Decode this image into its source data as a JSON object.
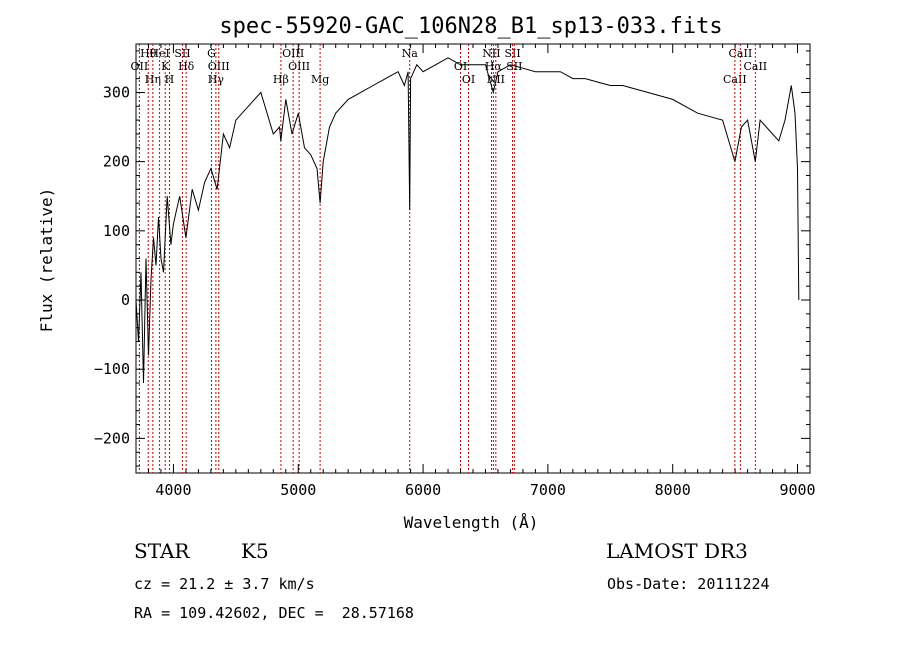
{
  "chart_data": {
    "type": "line",
    "title": "spec-55920-GAC_106N28_B1_sp13-033.fits",
    "xlabel": "Wavelength (Å)",
    "ylabel": "Flux (relative)",
    "xlim": [
      3700,
      9100
    ],
    "ylim": [
      -250,
      370
    ],
    "xticks": [
      4000,
      5000,
      6000,
      7000,
      8000,
      9000
    ],
    "yticks": [
      -200,
      -100,
      0,
      100,
      200,
      300
    ],
    "xtick_labels": [
      "4000",
      "5000",
      "6000",
      "7000",
      "8000",
      "9000"
    ],
    "ytick_labels": [
      "−200",
      "−100",
      "0",
      "100",
      "200",
      "300"
    ],
    "series": [
      {
        "name": "flux",
        "x": [
          3700,
          3720,
          3740,
          3760,
          3780,
          3800,
          3820,
          3840,
          3860,
          3880,
          3900,
          3920,
          3950,
          3980,
          4000,
          4050,
          4100,
          4150,
          4200,
          4250,
          4300,
          4350,
          4400,
          4450,
          4500,
          4600,
          4700,
          4800,
          4850,
          4860,
          4900,
          4950,
          5000,
          5050,
          5100,
          5150,
          5175,
          5200,
          5250,
          5300,
          5400,
          5500,
          5600,
          5700,
          5800,
          5850,
          5880,
          5893,
          5900,
          5950,
          6000,
          6100,
          6200,
          6300,
          6400,
          6500,
          6563,
          6600,
          6700,
          6800,
          6900,
          7000,
          7100,
          7200,
          7300,
          7400,
          7500,
          7600,
          7700,
          7800,
          7900,
          8000,
          8100,
          8200,
          8300,
          8400,
          8498,
          8550,
          8600,
          8662,
          8700,
          8750,
          8800,
          8850,
          8900,
          8950,
          8980,
          9000,
          9010
        ],
        "y": [
          0,
          -60,
          40,
          -120,
          60,
          -80,
          30,
          90,
          50,
          120,
          60,
          40,
          150,
          80,
          110,
          150,
          90,
          160,
          130,
          170,
          190,
          160,
          240,
          220,
          260,
          280,
          300,
          240,
          250,
          230,
          290,
          240,
          270,
          220,
          210,
          190,
          140,
          200,
          250,
          270,
          290,
          300,
          310,
          320,
          330,
          310,
          330,
          130,
          320,
          340,
          330,
          340,
          350,
          340,
          340,
          340,
          300,
          330,
          340,
          335,
          330,
          330,
          330,
          320,
          320,
          315,
          310,
          310,
          305,
          300,
          295,
          290,
          280,
          270,
          265,
          260,
          200,
          250,
          260,
          200,
          260,
          250,
          240,
          230,
          260,
          310,
          270,
          190,
          0
        ]
      }
    ],
    "lines": [
      {
        "name": "Hθ",
        "x": 3798
      },
      {
        "name": "OII",
        "x": 3727
      },
      {
        "name": "Hη",
        "x": 3835
      },
      {
        "name": "HeI",
        "x": 3889
      },
      {
        "name": "K",
        "x": 3934
      },
      {
        "name": "H",
        "x": 3968
      },
      {
        "name": "SII",
        "x": 4072
      },
      {
        "name": "Hδ",
        "x": 4102
      },
      {
        "name": "Hγ",
        "x": 4340
      },
      {
        "name": "G",
        "x": 4305
      },
      {
        "name": "OIII",
        "x": 4363
      },
      {
        "name": "Hβ",
        "x": 4861
      },
      {
        "name": "OIII",
        "x": 4959
      },
      {
        "name": "OIII",
        "x": 5007
      },
      {
        "name": "Mg",
        "x": 5175
      },
      {
        "name": "Na",
        "x": 5893
      },
      {
        "name": "OI",
        "x": 6300
      },
      {
        "name": "OI",
        "x": 6364
      },
      {
        "name": "NII",
        "x": 6548
      },
      {
        "name": "Hα",
        "x": 6563
      },
      {
        "name": "NII",
        "x": 6583
      },
      {
        "name": "SII",
        "x": 6717
      },
      {
        "name": "SII",
        "x": 6731
      },
      {
        "name": "CaII",
        "x": 8498
      },
      {
        "name": "CaII",
        "x": 8542
      },
      {
        "name": "CaII",
        "x": 8662
      }
    ],
    "labels": {
      "Hθ": "Hθ",
      "OII": "OII",
      "Hη": "Hη",
      "HeI": "HeI",
      "K": "K",
      "H": "H",
      "SII": "SII",
      "Hδ": "Hδ",
      "Hγ": "Hγ",
      "G": "G",
      "OIII": "OIII",
      "Hβ": "Hβ",
      "Mg": "Mg",
      "Na": "Na",
      "OI": "OI",
      "NII": "NII",
      "Hα": "Hα",
      "CaII": "CaII"
    }
  },
  "info": {
    "class": "STAR",
    "subclass": "K5",
    "survey": "LAMOST DR3",
    "cz": "cz = 21.2 ± 3.7 km/s",
    "obsdate": "Obs-Date: 20111224",
    "radec": "RA = 109.42602, DEC =  28.57168"
  },
  "colors": {
    "line_marker": "#cc0000",
    "spectrum": "#000000"
  }
}
